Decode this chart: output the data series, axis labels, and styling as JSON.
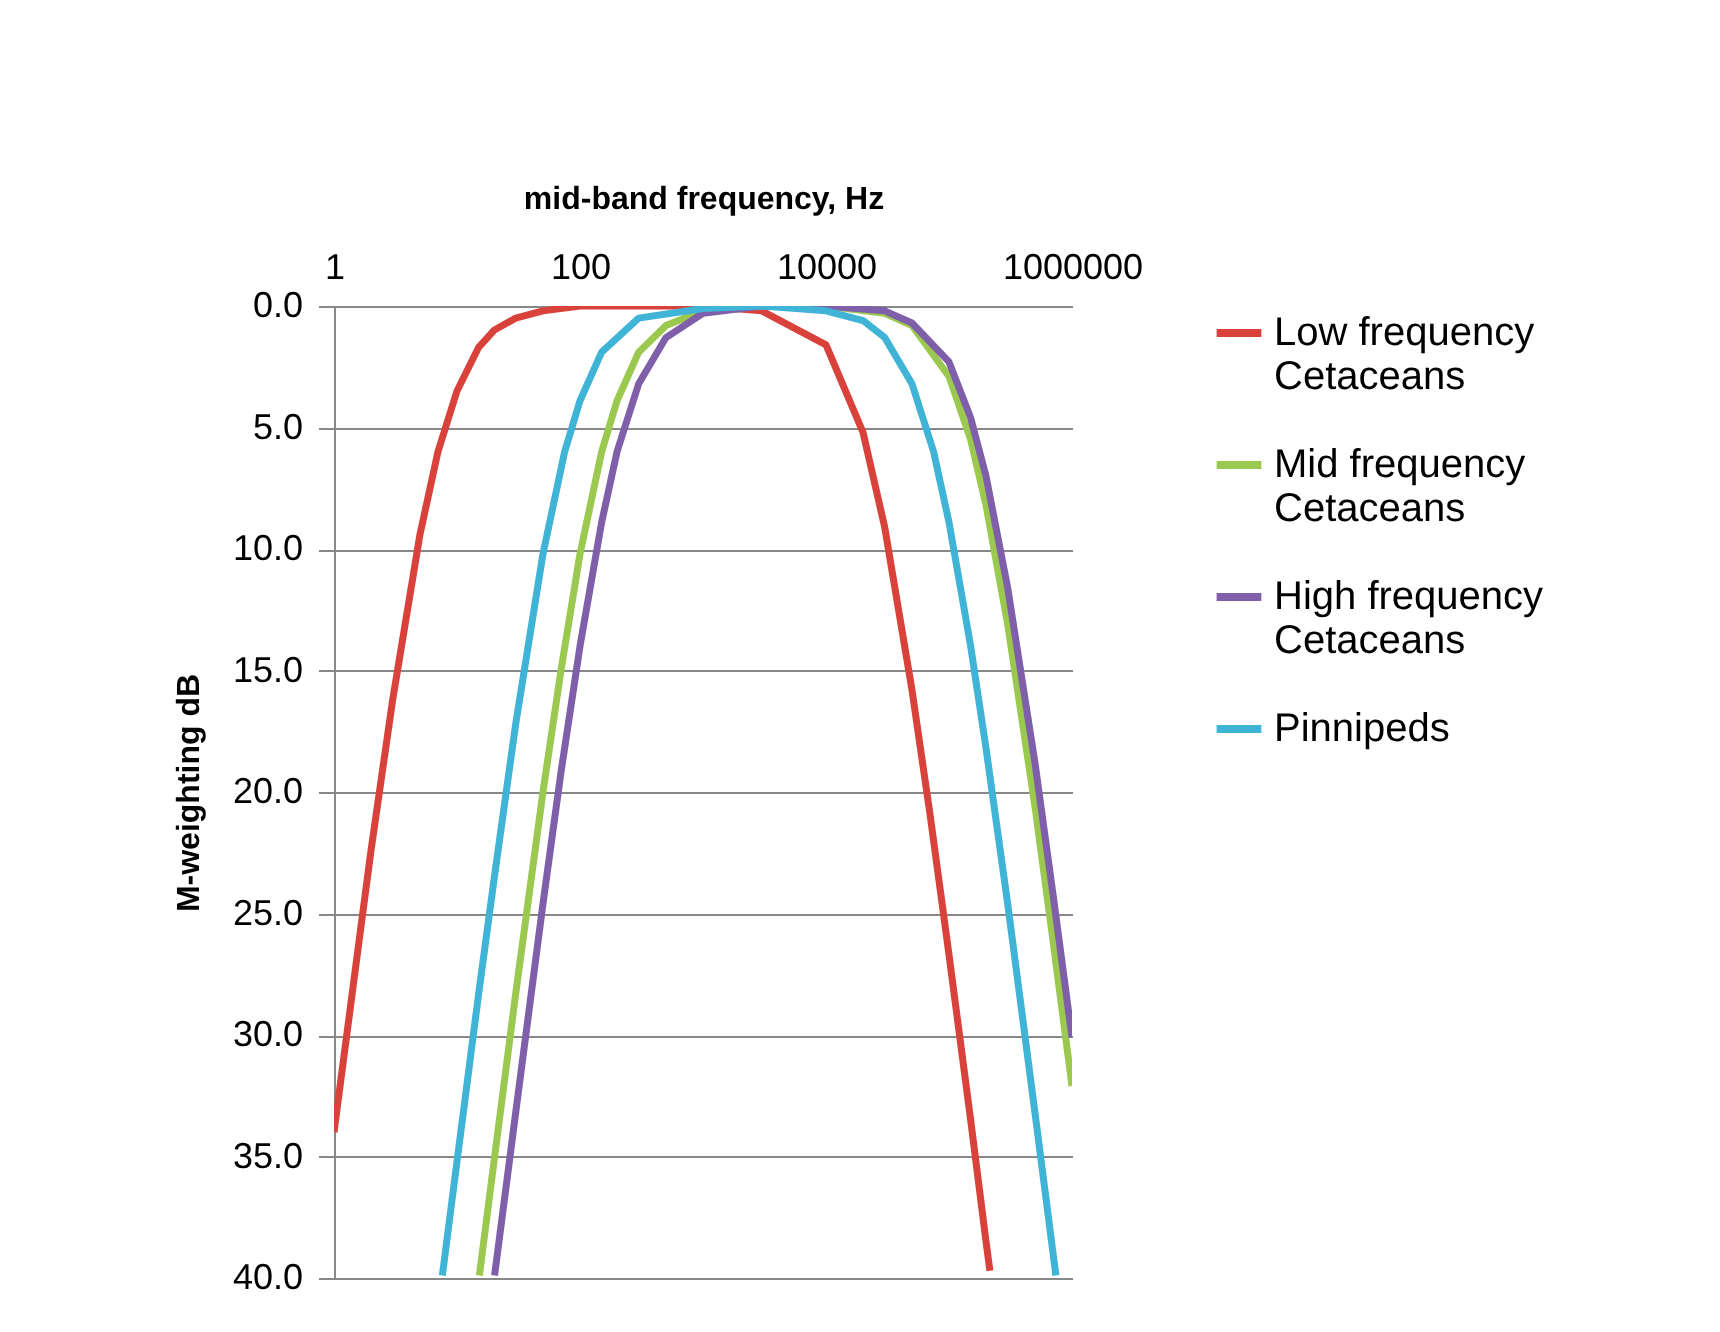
{
  "chart_data": {
    "type": "line",
    "xlabel": "mid-band frequency, Hz",
    "ylabel": "M-weighting dB",
    "log": "x",
    "grid": "y",
    "legend": "right",
    "xlim": [
      1,
      1000000
    ],
    "xticks": [
      1,
      100,
      10000,
      1000000
    ],
    "ylim": [
      40,
      0
    ],
    "yticks": [
      {
        "value": 0,
        "label": "0.0"
      },
      {
        "value": 5,
        "label": "5.0"
      },
      {
        "value": 10,
        "label": "10.0"
      },
      {
        "value": 15,
        "label": "15.0"
      },
      {
        "value": 20,
        "label": "20.0"
      },
      {
        "value": 25,
        "label": "25.0"
      },
      {
        "value": 30,
        "label": "30.0"
      },
      {
        "value": 35,
        "label": "35.0"
      },
      {
        "value": 40,
        "label": "40.0"
      }
    ],
    "series": [
      {
        "name": "Low frequency Cetaceans",
        "color": "#d9413b",
        "x": [
          1,
          1.5,
          2,
          3,
          5,
          7,
          10,
          15,
          20,
          30,
          50,
          100,
          300,
          1000,
          3000,
          10000,
          20000,
          30000,
          50000,
          70000,
          100000,
          150000,
          200000,
          215000
        ],
        "values": [
          34.0,
          27.2,
          22.4,
          16.2,
          9.4,
          6.0,
          3.5,
          1.7,
          1.0,
          0.5,
          0.2,
          0.0,
          0.0,
          0.0,
          0.2,
          1.6,
          5.2,
          9.1,
          15.8,
          20.9,
          26.7,
          33.5,
          38.5,
          39.7
        ]
      },
      {
        "name": "Mid frequency Cetaceans",
        "color": "#9bc94f",
        "x": [
          15.2,
          20,
          30,
          50,
          70,
          100,
          150,
          200,
          300,
          500,
          1000,
          3000,
          10000,
          30000,
          50000,
          100000,
          150000,
          200000,
          300000,
          500000,
          700000,
          1000000
        ],
        "values": [
          39.9,
          35.2,
          28.3,
          20.0,
          15.0,
          10.2,
          6.0,
          3.9,
          1.9,
          0.8,
          0.2,
          0.0,
          0.0,
          0.3,
          0.8,
          2.9,
          5.5,
          8.2,
          13.1,
          20.6,
          26.1,
          32.1
        ]
      },
      {
        "name": "High frequency Cetaceans",
        "color": "#7f5fa9",
        "x": [
          20.2,
          30,
          50,
          70,
          100,
          150,
          200,
          300,
          500,
          1000,
          3000,
          10000,
          30000,
          50000,
          100000,
          150000,
          200000,
          300000,
          500000,
          700000,
          1000000
        ],
        "values": [
          39.9,
          33.2,
          24.6,
          19.2,
          14.0,
          8.9,
          6.0,
          3.2,
          1.3,
          0.3,
          0.0,
          0.0,
          0.2,
          0.7,
          2.3,
          4.6,
          7.0,
          11.6,
          18.8,
          24.2,
          30.1
        ]
      },
      {
        "name": "Pinnipeds",
        "color": "#3fb4d6",
        "x": [
          7.6,
          10,
          15,
          20,
          30,
          50,
          75,
          100,
          150,
          300,
          1000,
          3000,
          10000,
          20000,
          30000,
          50000,
          75000,
          100000,
          150000,
          200000,
          300000,
          500000,
          740000
        ],
        "values": [
          39.9,
          35.2,
          28.3,
          23.6,
          17.2,
          10.2,
          6.0,
          3.9,
          1.9,
          0.5,
          0.1,
          0.0,
          0.2,
          0.6,
          1.3,
          3.2,
          6.0,
          8.9,
          14.0,
          18.2,
          24.6,
          33.2,
          39.9
        ]
      }
    ]
  }
}
